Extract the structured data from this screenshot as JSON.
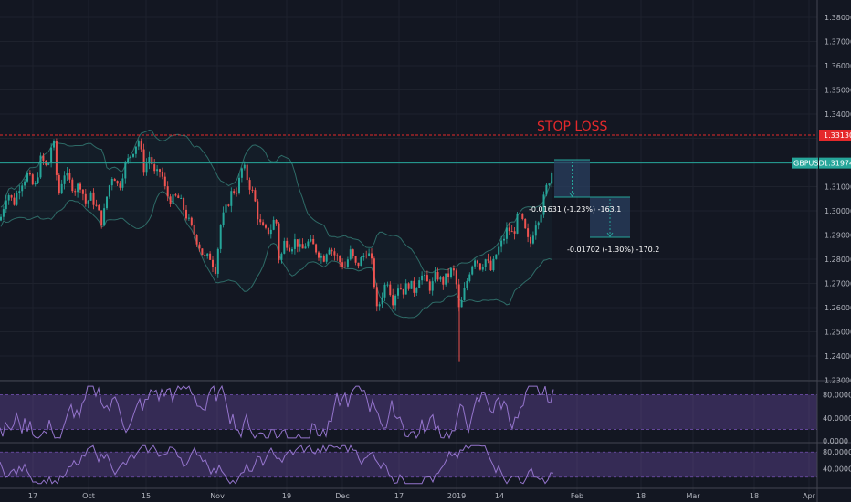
{
  "chart_data": {
    "type": "candlestick",
    "symbol": "GBPUSD",
    "last_price": "1.31974",
    "price_axis": {
      "ticks": [
        "1.38000",
        "1.37000",
        "1.36000",
        "1.35000",
        "1.34000",
        "1.33000",
        "1.32000",
        "1.31000",
        "1.30000",
        "1.29000",
        "1.28000",
        "1.27000",
        "1.26000",
        "1.25000",
        "1.24000",
        "1.23000"
      ],
      "ylim": [
        1.228,
        1.384
      ]
    },
    "time_axis": {
      "ticks": [
        "17",
        "Oct",
        "15",
        "Nov",
        "19",
        "Dec",
        "17",
        "2019",
        "14",
        "Feb",
        "18",
        "Mar",
        "18",
        "Apr"
      ]
    },
    "close_path": [
      [
        0,
        1.296
      ],
      [
        8,
        1.308
      ],
      [
        15,
        1.303
      ],
      [
        22,
        1.311
      ],
      [
        30,
        1.315
      ],
      [
        38,
        1.309
      ],
      [
        45,
        1.322
      ],
      [
        52,
        1.317
      ],
      [
        58,
        1.331
      ],
      [
        64,
        1.306
      ],
      [
        70,
        1.316
      ],
      [
        76,
        1.312
      ],
      [
        82,
        1.309
      ],
      [
        88,
        1.311
      ],
      [
        94,
        1.303
      ],
      [
        100,
        1.306
      ],
      [
        106,
        1.301
      ],
      [
        112,
        1.295
      ],
      [
        118,
        1.308
      ],
      [
        124,
        1.316
      ],
      [
        130,
        1.309
      ],
      [
        136,
        1.318
      ],
      [
        142,
        1.322
      ],
      [
        148,
        1.327
      ],
      [
        152,
        1.329
      ],
      [
        158,
        1.317
      ],
      [
        164,
        1.323
      ],
      [
        170,
        1.314
      ],
      [
        176,
        1.317
      ],
      [
        182,
        1.307
      ],
      [
        188,
        1.304
      ],
      [
        194,
        1.306
      ],
      [
        200,
        1.302
      ],
      [
        206,
        1.296
      ],
      [
        212,
        1.291
      ],
      [
        218,
        1.286
      ],
      [
        224,
        1.28
      ],
      [
        230,
        1.281
      ],
      [
        236,
        1.276
      ],
      [
        242,
        1.295
      ],
      [
        248,
        1.301
      ],
      [
        254,
        1.308
      ],
      [
        260,
        1.309
      ],
      [
        266,
        1.319
      ],
      [
        272,
        1.312
      ],
      [
        278,
        1.306
      ],
      [
        284,
        1.295
      ],
      [
        290,
        1.291
      ],
      [
        296,
        1.292
      ],
      [
        302,
        1.298
      ],
      [
        306,
        1.278
      ],
      [
        312,
        1.288
      ],
      [
        318,
        1.285
      ],
      [
        324,
        1.288
      ],
      [
        330,
        1.283
      ],
      [
        336,
        1.287
      ],
      [
        342,
        1.286
      ],
      [
        348,
        1.283
      ],
      [
        354,
        1.28
      ],
      [
        360,
        1.286
      ],
      [
        366,
        1.282
      ],
      [
        372,
        1.279
      ],
      [
        378,
        1.277
      ],
      [
        384,
        1.283
      ],
      [
        390,
        1.277
      ],
      [
        396,
        1.28
      ],
      [
        402,
        1.284
      ],
      [
        408,
        1.277
      ],
      [
        413,
        1.258
      ],
      [
        418,
        1.265
      ],
      [
        424,
        1.272
      ],
      [
        430,
        1.263
      ],
      [
        436,
        1.269
      ],
      [
        442,
        1.267
      ],
      [
        448,
        1.27
      ],
      [
        454,
        1.267
      ],
      [
        460,
        1.274
      ],
      [
        466,
        1.271
      ],
      [
        472,
        1.268
      ],
      [
        478,
        1.274
      ],
      [
        484,
        1.27
      ],
      [
        490,
        1.273
      ],
      [
        496,
        1.276
      ],
      [
        500,
        1.269
      ],
      [
        503,
        1.258
      ],
      [
        508,
        1.266
      ],
      [
        514,
        1.275
      ],
      [
        520,
        1.281
      ],
      [
        526,
        1.277
      ],
      [
        532,
        1.28
      ],
      [
        538,
        1.275
      ],
      [
        544,
        1.283
      ],
      [
        550,
        1.287
      ],
      [
        556,
        1.293
      ],
      [
        562,
        1.29
      ],
      [
        568,
        1.299
      ],
      [
        574,
        1.293
      ],
      [
        580,
        1.285
      ],
      [
        586,
        1.295
      ],
      [
        592,
        1.299
      ],
      [
        598,
        1.309
      ],
      [
        604,
        1.316
      ],
      [
        607,
        1.319
      ]
    ],
    "horizontal_lines": [
      {
        "price": 1.3313,
        "label": "1.33130",
        "color": "#e5292b",
        "style": "dashed"
      },
      {
        "price": 1.31974,
        "label": "1.31974",
        "color": "#26a69a",
        "style": "solid"
      }
    ],
    "annotations": {
      "stop_loss": "STOP LOSS",
      "measure_1": "-0.01631 (-1.23%) -163.1",
      "measure_2": "-0.01702 (-1.30%) -170.2"
    },
    "oscillator_1": {
      "ticks": [
        "80.0000",
        "40.0000",
        "0.0000"
      ],
      "band": [
        20,
        80
      ],
      "color": "#7e57c2"
    },
    "oscillator_2": {
      "ticks": [
        "80.0000",
        "40.0000"
      ],
      "band": [
        20,
        80
      ],
      "color": "#7e57c2"
    },
    "colors": {
      "up": "#26a69a",
      "down": "#ef5350",
      "background": "#131722",
      "grid": "#1e222d",
      "bollinger": "#2e6b67",
      "measure_fill": "#2a3f5f"
    }
  }
}
